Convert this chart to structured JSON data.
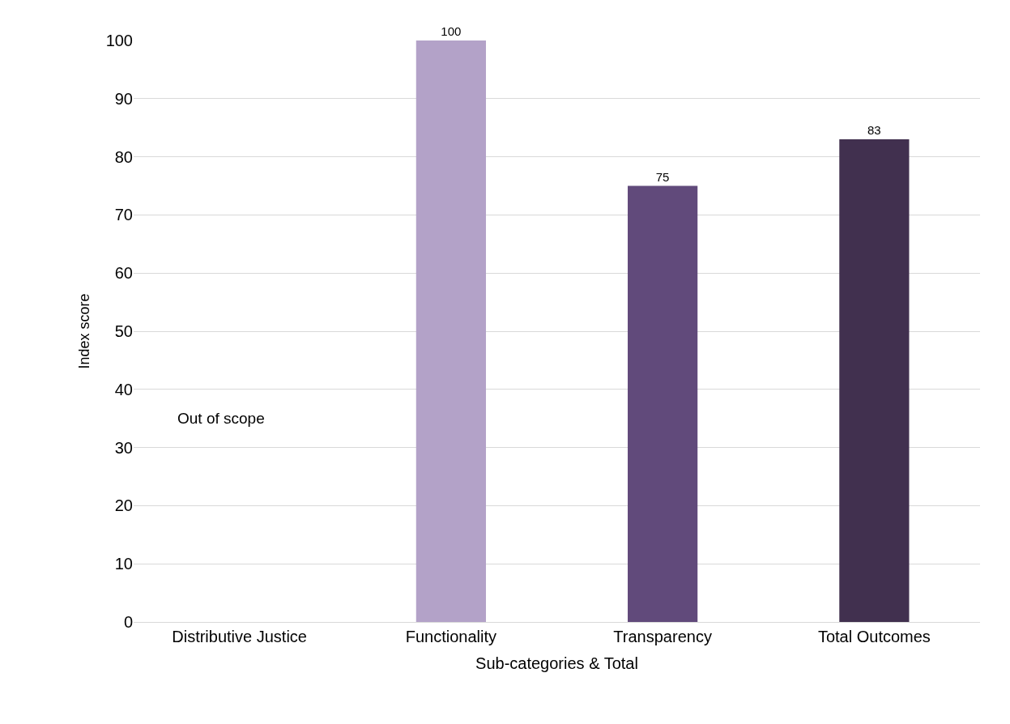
{
  "chart_data": {
    "type": "bar",
    "xlabel": "Sub-categories & Total",
    "ylabel": "Index score",
    "categories": [
      "Distributive Justice",
      "Functionality",
      "Transparency",
      "Total Outcomes"
    ],
    "values": [
      null,
      100,
      75,
      83
    ],
    "colors": [
      "#b3a2c8",
      "#b3a2c8",
      "#614a7b",
      "#41304f"
    ],
    "value_labels": [
      null,
      "100",
      "75",
      "83"
    ],
    "annotations": [
      "Out of scope"
    ],
    "ylim": [
      0,
      100
    ],
    "yticks": [
      0,
      10,
      20,
      30,
      40,
      50,
      60,
      70,
      80,
      90,
      100
    ],
    "grid": "y"
  }
}
